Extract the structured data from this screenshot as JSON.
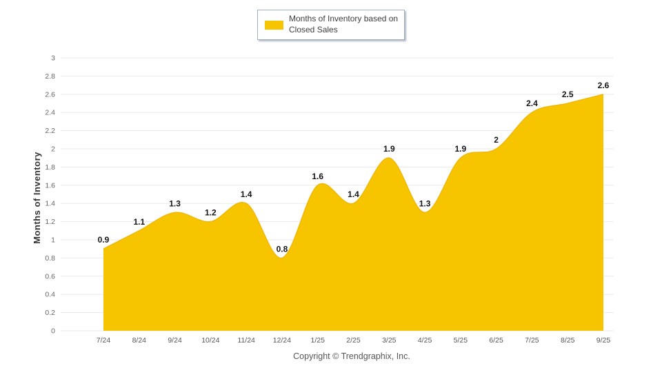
{
  "legend": {
    "label": "Months of Inventory based on Closed Sales",
    "swatch_color": "#F7C500"
  },
  "y_axis": {
    "title": "Months of Inventory"
  },
  "footer": {
    "copyright": "Copyright © Trendgraphix, Inc."
  },
  "chart_data": {
    "type": "area",
    "categories": [
      "7/24",
      "8/24",
      "9/24",
      "10/24",
      "11/24",
      "12/24",
      "1/25",
      "2/25",
      "3/25",
      "4/25",
      "5/25",
      "6/25",
      "7/25",
      "8/25",
      "9/25"
    ],
    "values": [
      0.9,
      1.1,
      1.3,
      1.2,
      1.4,
      0.8,
      1.6,
      1.4,
      1.9,
      1.3,
      1.9,
      2,
      2.4,
      2.5,
      2.6
    ],
    "title": "",
    "legend": "Months of Inventory based on Closed Sales",
    "xlabel": "",
    "ylabel": "Months of Inventory",
    "ylim": [
      0,
      3
    ],
    "ytick_step": 0.2,
    "grid": true,
    "smooth": true,
    "legend_position": "top-center",
    "fill_color": "#F7C500",
    "edge_color": "#F0B70A",
    "gridline_color": "#e9e9eb",
    "tick_label_color": "#666666",
    "x_label_color": "#555555",
    "data_label_color": "#141414"
  }
}
